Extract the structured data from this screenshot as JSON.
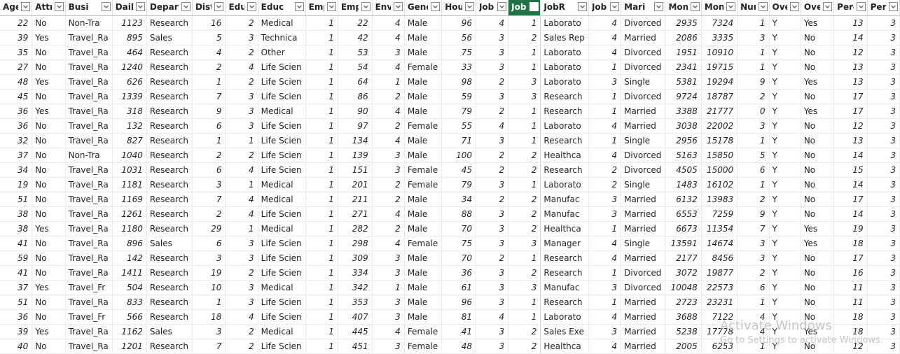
{
  "columns": [
    {
      "label": "Age",
      "type": "num"
    },
    {
      "label": "Attri",
      "type": "txt"
    },
    {
      "label": "Busi",
      "type": "txt"
    },
    {
      "label": "Daily",
      "type": "num"
    },
    {
      "label": "Depar",
      "type": "txt"
    },
    {
      "label": "Dista",
      "type": "num"
    },
    {
      "label": "Educ",
      "type": "num"
    },
    {
      "label": "Educ",
      "type": "txt"
    },
    {
      "label": "Empl",
      "type": "num"
    },
    {
      "label": "Empl",
      "type": "num"
    },
    {
      "label": "Envir",
      "type": "num"
    },
    {
      "label": "Genc",
      "type": "txt"
    },
    {
      "label": "Hour",
      "type": "num"
    },
    {
      "label": "Jobl",
      "type": "num"
    },
    {
      "label": "JobL",
      "type": "num",
      "selected": true
    },
    {
      "label": "JobR",
      "type": "txt"
    },
    {
      "label": "JobS",
      "type": "num"
    },
    {
      "label": "Mari",
      "type": "txt"
    },
    {
      "label": "Mon",
      "type": "num"
    },
    {
      "label": "Mon",
      "type": "num"
    },
    {
      "label": "Num",
      "type": "num"
    },
    {
      "label": "Over",
      "type": "txt"
    },
    {
      "label": "Over",
      "type": "txt"
    },
    {
      "label": "Perce",
      "type": "num"
    },
    {
      "label": "Perf",
      "type": "num"
    }
  ],
  "rows": [
    [
      "22",
      "No",
      "Non-Tra",
      "1123",
      "Research",
      "16",
      "2",
      "Medical",
      "1",
      "22",
      "4",
      "Male",
      "96",
      "4",
      "1",
      "Laborato",
      "4",
      "Divorced",
      "2935",
      "7324",
      "1",
      "Y",
      "Yes",
      "13",
      "3"
    ],
    [
      "39",
      "Yes",
      "Travel_Ra",
      "895",
      "Sales",
      "5",
      "3",
      "Technica",
      "1",
      "42",
      "4",
      "Male",
      "56",
      "3",
      "2",
      "Sales Rep",
      "4",
      "Married",
      "2086",
      "3335",
      "3",
      "Y",
      "No",
      "14",
      "3"
    ],
    [
      "35",
      "No",
      "Travel_Ra",
      "464",
      "Research",
      "4",
      "2",
      "Other",
      "1",
      "53",
      "3",
      "Male",
      "75",
      "3",
      "1",
      "Laborato",
      "4",
      "Divorced",
      "1951",
      "10910",
      "1",
      "Y",
      "No",
      "12",
      "3"
    ],
    [
      "27",
      "No",
      "Travel_Ra",
      "1240",
      "Research",
      "2",
      "4",
      "Life Scien",
      "1",
      "54",
      "4",
      "Female",
      "33",
      "3",
      "1",
      "Laborato",
      "1",
      "Divorced",
      "2341",
      "19715",
      "1",
      "Y",
      "No",
      "13",
      "3"
    ],
    [
      "48",
      "Yes",
      "Travel_Ra",
      "626",
      "Research",
      "1",
      "2",
      "Life Scien",
      "1",
      "64",
      "1",
      "Male",
      "98",
      "2",
      "3",
      "Laborato",
      "3",
      "Single",
      "5381",
      "19294",
      "9",
      "Y",
      "Yes",
      "13",
      "3"
    ],
    [
      "45",
      "No",
      "Travel_Ra",
      "1339",
      "Research",
      "7",
      "3",
      "Life Scien",
      "1",
      "86",
      "2",
      "Male",
      "59",
      "3",
      "3",
      "Research",
      "1",
      "Divorced",
      "9724",
      "18787",
      "2",
      "Y",
      "No",
      "17",
      "3"
    ],
    [
      "36",
      "Yes",
      "Travel_Ra",
      "318",
      "Research",
      "9",
      "3",
      "Medical",
      "1",
      "90",
      "4",
      "Male",
      "79",
      "2",
      "1",
      "Research",
      "1",
      "Married",
      "3388",
      "21777",
      "0",
      "Y",
      "Yes",
      "17",
      "3"
    ],
    [
      "36",
      "No",
      "Travel_Ra",
      "132",
      "Research",
      "6",
      "3",
      "Life Scien",
      "1",
      "97",
      "2",
      "Female",
      "55",
      "4",
      "1",
      "Laborato",
      "4",
      "Married",
      "3038",
      "22002",
      "3",
      "Y",
      "No",
      "12",
      "3"
    ],
    [
      "32",
      "No",
      "Travel_Ra",
      "827",
      "Research",
      "1",
      "1",
      "Life Scien",
      "1",
      "134",
      "4",
      "Male",
      "71",
      "3",
      "1",
      "Research",
      "1",
      "Single",
      "2956",
      "15178",
      "1",
      "Y",
      "No",
      "13",
      "3"
    ],
    [
      "37",
      "No",
      "Non-Tra",
      "1040",
      "Research",
      "2",
      "2",
      "Life Scien",
      "1",
      "139",
      "3",
      "Male",
      "100",
      "2",
      "2",
      "Healthca",
      "4",
      "Divorced",
      "5163",
      "15850",
      "5",
      "Y",
      "No",
      "14",
      "3"
    ],
    [
      "34",
      "No",
      "Travel_Ra",
      "1031",
      "Research",
      "6",
      "4",
      "Life Scien",
      "1",
      "151",
      "3",
      "Female",
      "45",
      "2",
      "2",
      "Research",
      "2",
      "Divorced",
      "4505",
      "15000",
      "6",
      "Y",
      "No",
      "15",
      "3"
    ],
    [
      "19",
      "No",
      "Travel_Ra",
      "1181",
      "Research",
      "3",
      "1",
      "Medical",
      "1",
      "201",
      "2",
      "Female",
      "79",
      "3",
      "1",
      "Laborato",
      "2",
      "Single",
      "1483",
      "16102",
      "1",
      "Y",
      "No",
      "14",
      "3"
    ],
    [
      "51",
      "No",
      "Travel_Ra",
      "1169",
      "Research",
      "7",
      "4",
      "Medical",
      "1",
      "211",
      "2",
      "Male",
      "34",
      "2",
      "2",
      "Manufac",
      "3",
      "Married",
      "6132",
      "13983",
      "2",
      "Y",
      "No",
      "17",
      "3"
    ],
    [
      "38",
      "No",
      "Travel_Ra",
      "1261",
      "Research",
      "2",
      "4",
      "Life Scien",
      "1",
      "271",
      "4",
      "Male",
      "88",
      "3",
      "2",
      "Manufac",
      "3",
      "Married",
      "6553",
      "7259",
      "9",
      "Y",
      "No",
      "14",
      "3"
    ],
    [
      "38",
      "Yes",
      "Travel_Ra",
      "1180",
      "Research",
      "29",
      "1",
      "Medical",
      "1",
      "282",
      "2",
      "Male",
      "70",
      "3",
      "2",
      "Healthca",
      "1",
      "Married",
      "6673",
      "11354",
      "7",
      "Y",
      "Yes",
      "19",
      "3"
    ],
    [
      "41",
      "No",
      "Travel_Ra",
      "896",
      "Sales",
      "6",
      "3",
      "Life Scien",
      "1",
      "298",
      "4",
      "Female",
      "75",
      "3",
      "3",
      "Manager",
      "4",
      "Single",
      "13591",
      "14674",
      "3",
      "Y",
      "Yes",
      "18",
      "3"
    ],
    [
      "59",
      "No",
      "Travel_Ra",
      "142",
      "Research",
      "3",
      "3",
      "Life Scien",
      "1",
      "309",
      "3",
      "Male",
      "70",
      "2",
      "1",
      "Research",
      "4",
      "Married",
      "2177",
      "8456",
      "3",
      "Y",
      "No",
      "17",
      "3"
    ],
    [
      "41",
      "No",
      "Travel_Ra",
      "1411",
      "Research",
      "19",
      "2",
      "Life Scien",
      "1",
      "334",
      "3",
      "Male",
      "36",
      "3",
      "2",
      "Research",
      "1",
      "Divorced",
      "3072",
      "19877",
      "2",
      "Y",
      "No",
      "16",
      "3"
    ],
    [
      "37",
      "Yes",
      "Travel_Fr",
      "504",
      "Research",
      "10",
      "3",
      "Medical",
      "1",
      "342",
      "1",
      "Male",
      "61",
      "3",
      "3",
      "Manufac",
      "3",
      "Divorced",
      "10048",
      "22573",
      "6",
      "Y",
      "No",
      "11",
      "3"
    ],
    [
      "51",
      "No",
      "Travel_Ra",
      "833",
      "Research",
      "1",
      "3",
      "Life Scien",
      "1",
      "353",
      "3",
      "Male",
      "96",
      "3",
      "1",
      "Research",
      "1",
      "Married",
      "2723",
      "23231",
      "1",
      "Y",
      "No",
      "11",
      "3"
    ],
    [
      "36",
      "No",
      "Travel_Fr",
      "566",
      "Research",
      "18",
      "4",
      "Life Scien",
      "1",
      "407",
      "3",
      "Male",
      "81",
      "4",
      "1",
      "Laborato",
      "4",
      "Married",
      "3688",
      "7122",
      "4",
      "Y",
      "No",
      "18",
      "3"
    ],
    [
      "39",
      "Yes",
      "Travel_Ra",
      "1162",
      "Sales",
      "3",
      "2",
      "Medical",
      "1",
      "445",
      "4",
      "Female",
      "41",
      "3",
      "2",
      "Sales Exe",
      "3",
      "Married",
      "5238",
      "17778",
      "4",
      "Y",
      "Yes",
      "18",
      "3"
    ],
    [
      "40",
      "No",
      "Travel_Ra",
      "1201",
      "Research",
      "7",
      "2",
      "Life Scien",
      "1",
      "451",
      "3",
      "Female",
      "48",
      "3",
      "2",
      "Healthca",
      "4",
      "Married",
      "2005",
      "6253",
      "1",
      "Y",
      "No",
      "12",
      "3"
    ]
  ],
  "watermark": {
    "line1": "Activate Windows",
    "line2": "Go to Settings to activate Windows."
  }
}
